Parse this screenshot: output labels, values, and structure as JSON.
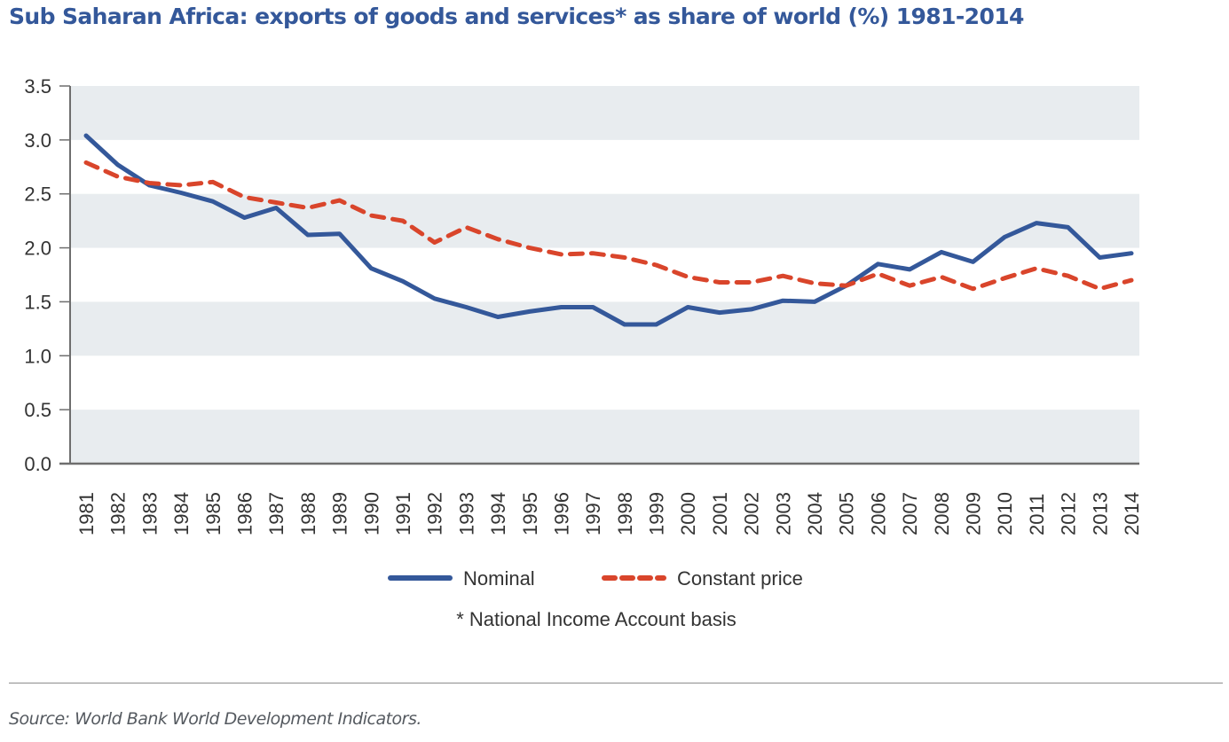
{
  "chart_data": {
    "type": "line",
    "title": "Sub Saharan Africa: exports of goods and services* as share of world (%) 1981-2014",
    "xlabel": "",
    "ylabel": "",
    "ylim": [
      0,
      3.5
    ],
    "yticks": [
      "0.0",
      "0.5",
      "1.0",
      "1.5",
      "2.0",
      "2.5",
      "3.0",
      "3.5"
    ],
    "ytick_values": [
      0,
      0.5,
      1.0,
      1.5,
      2.0,
      2.5,
      3.0,
      3.5
    ],
    "grid": "alternating horizontal bands",
    "legend_position": "bottom-center",
    "x": [
      "1981",
      "1982",
      "1983",
      "1984",
      "1985",
      "1986",
      "1987",
      "1988",
      "1989",
      "1990",
      "1991",
      "1992",
      "1993",
      "1994",
      "1995",
      "1996",
      "1997",
      "1998",
      "1999",
      "2000",
      "2001",
      "2002",
      "2003",
      "2004",
      "2005",
      "2006",
      "2007",
      "2008",
      "2009",
      "2010",
      "2011",
      "2012",
      "2013",
      "2014"
    ],
    "series": [
      {
        "name": "Nominal",
        "color": "#34589a",
        "style": "solid",
        "values": [
          3.04,
          2.77,
          2.58,
          2.51,
          2.43,
          2.28,
          2.37,
          2.12,
          2.13,
          1.81,
          1.69,
          1.53,
          1.45,
          1.36,
          1.41,
          1.45,
          1.45,
          1.29,
          1.29,
          1.45,
          1.4,
          1.43,
          1.51,
          1.5,
          1.65,
          1.85,
          1.8,
          1.96,
          1.87,
          2.1,
          2.23,
          2.19,
          1.91,
          1.95
        ]
      },
      {
        "name": "Constant price",
        "color": "#d9452b",
        "style": "dashed",
        "values": [
          2.79,
          2.66,
          2.6,
          2.58,
          2.61,
          2.47,
          2.42,
          2.37,
          2.44,
          2.3,
          2.25,
          2.05,
          2.19,
          2.08,
          2.0,
          1.94,
          1.95,
          1.91,
          1.84,
          1.73,
          1.68,
          1.68,
          1.74,
          1.67,
          1.65,
          1.76,
          1.65,
          1.73,
          1.62,
          1.72,
          1.81,
          1.74,
          1.62,
          1.7
        ]
      }
    ],
    "annotation": "* National Income Account basis"
  },
  "footer": {
    "source": "Source: World Bank World Development Indicators."
  },
  "colors": {
    "title": "#34589a",
    "band": "#e8ecef",
    "axis": "#6e6e6e",
    "text": "#333333"
  }
}
